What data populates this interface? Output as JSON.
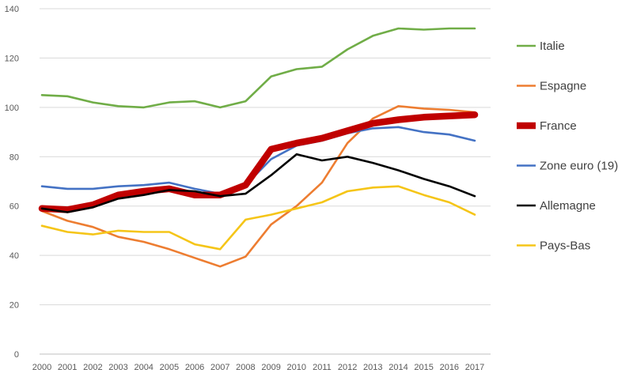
{
  "chart_data": {
    "type": "line",
    "title": "",
    "xlabel": "",
    "ylabel": "",
    "x": [
      "2000",
      "2001",
      "2002",
      "2003",
      "2004",
      "2005",
      "2006",
      "2007",
      "2008",
      "2009",
      "2010",
      "2011",
      "2012",
      "2013",
      "2014",
      "2015",
      "2016",
      "2017"
    ],
    "ylim": [
      0,
      140
    ],
    "yticks": [
      0,
      20,
      40,
      60,
      80,
      100,
      120,
      140
    ],
    "grid": "horizontal",
    "legend_position": "right",
    "series": [
      {
        "name": "Italie",
        "color": "#70AD47",
        "values": [
          105,
          104.5,
          102,
          100.5,
          100,
          102,
          102.5,
          100,
          102.5,
          112.5,
          115.5,
          116.5,
          123.5,
          129,
          132,
          131.5,
          132,
          132
        ]
      },
      {
        "name": "Espagne",
        "color": "#ED7D31",
        "values": [
          58,
          54,
          51.5,
          47.5,
          45.5,
          42.5,
          39,
          35.5,
          39.5,
          52.5,
          60,
          69.5,
          85.5,
          95.5,
          100.5,
          99.5,
          99,
          98
        ]
      },
      {
        "name": "France",
        "color": "#C00000",
        "values": [
          59,
          58.5,
          60.5,
          64.5,
          66,
          67,
          64.5,
          64.5,
          68.5,
          83,
          85.5,
          87.5,
          90.5,
          93.5,
          95,
          96,
          96.5,
          97
        ]
      },
      {
        "name": "Zone euro (19)",
        "color": "#4472C4",
        "values": [
          68,
          67,
          67,
          68,
          68.5,
          69.5,
          67,
          65,
          68.5,
          79,
          84.5,
          86.5,
          89.5,
          91.5,
          92,
          90,
          89,
          86.5
        ]
      },
      {
        "name": "Allemagne",
        "color": "#000000",
        "values": [
          59,
          57.5,
          59.5,
          63,
          64.5,
          66.5,
          66,
          64,
          65,
          72.5,
          81,
          78.5,
          80,
          77.5,
          74.5,
          71,
          68,
          64
        ]
      },
      {
        "name": "Pays-Bas",
        "color": "#F5C518",
        "values": [
          52,
          49.5,
          48.5,
          50,
          49.5,
          49.5,
          44.5,
          42.5,
          54.5,
          56.5,
          59,
          61.5,
          66,
          67.5,
          68,
          64.5,
          61.5,
          56.5
        ]
      }
    ]
  }
}
